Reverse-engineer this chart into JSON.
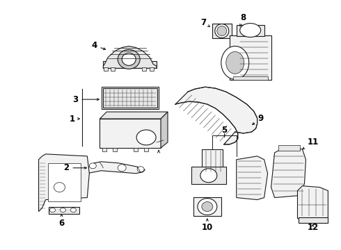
{
  "background_color": "#ffffff",
  "line_color": "#1a1a1a",
  "fig_width": 4.9,
  "fig_height": 3.6,
  "dpi": 100,
  "label_fontsize": 8.5,
  "label_fontweight": "bold",
  "arrow_lw": 0.8,
  "arrow_mutation_scale": 5,
  "parts_lw": 0.8,
  "parts_lw_thin": 0.5,
  "gray_fill": "#e8e8e8",
  "light_fill": "#f2f2f2",
  "white_fill": "#ffffff",
  "dark_fill": "#cccccc"
}
